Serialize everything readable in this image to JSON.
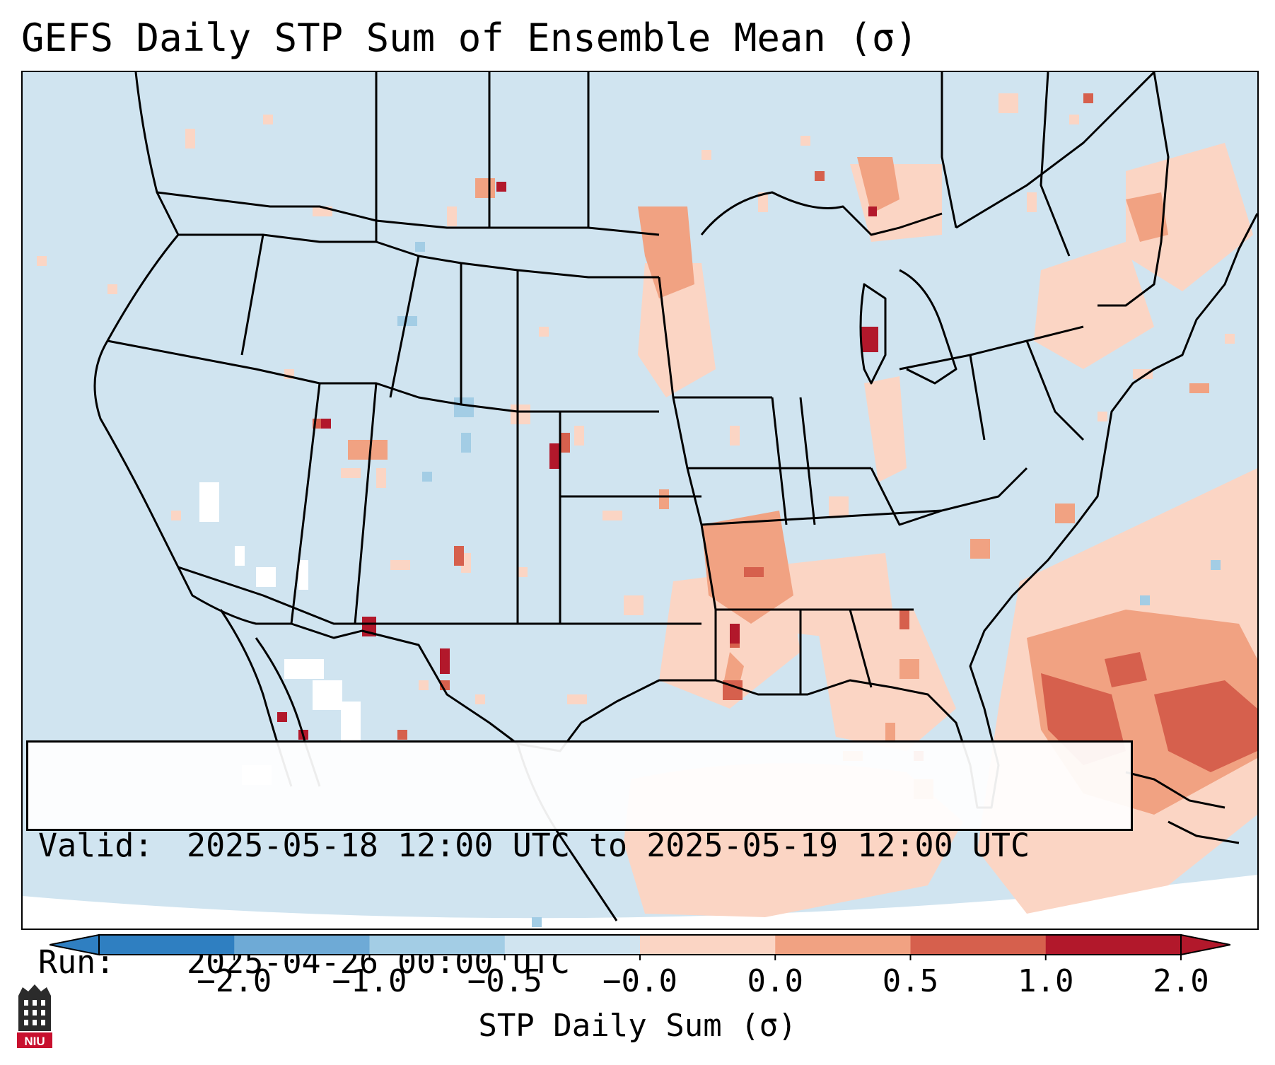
{
  "title": "GEFS Daily STP Sum of Ensemble Mean (σ)",
  "info": {
    "valid_label": "Valid:",
    "valid_value": "2025-05-18 12:00 UTC to 2025-05-19 12:00 UTC",
    "run_label": "Run:",
    "run_value": "2025-04-26 00:00 UTC"
  },
  "colorbar": {
    "label": "STP Daily Sum (σ)",
    "ticks": [
      "−2.0",
      "−1.0",
      "−0.5",
      "−0.0",
      "0.0",
      "0.5",
      "1.0",
      "2.0"
    ],
    "colors": [
      "#2f7fc1",
      "#6eaad6",
      "#a3cde5",
      "#d0e4f0",
      "#fbd5c4",
      "#f1a282",
      "#d6604d",
      "#b2182b"
    ],
    "extend_low": "#2f7fc1",
    "extend_high": "#b2182b"
  },
  "map": {
    "background": "#d0e4f0",
    "offdomain": "#ffffff",
    "coastline": "#000000"
  },
  "logo": {
    "text": "NIU",
    "color": "#c8102e"
  }
}
